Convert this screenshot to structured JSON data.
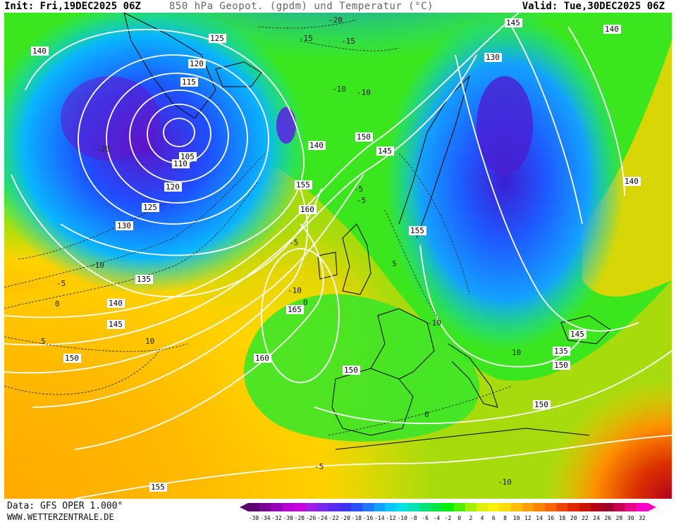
{
  "header": {
    "init": "Init: Fri,19DEC2025 06Z",
    "title": "850 hPa Geopot. (gpdm) und Temperatur (°C)",
    "valid": "Valid: Tue,30DEC2025 06Z"
  },
  "footer": {
    "data_source": "Data: GFS OPER 1.000°",
    "website": "WWW.WETTERZENTRALE.DE"
  },
  "legend": {
    "labels": [
      "-38",
      "-34",
      "-32",
      "-30",
      "-28",
      "-26",
      "-24",
      "-22",
      "-20",
      "-18",
      "-16",
      "-14",
      "-12",
      "-10",
      "-8",
      "-6",
      "-4",
      "-2",
      "0",
      "2",
      "4",
      "6",
      "8",
      "10",
      "12",
      "14",
      "16",
      "18",
      "20",
      "22",
      "24",
      "26",
      "28",
      "30",
      "32"
    ],
    "colors": [
      "#5a006e",
      "#7a0096",
      "#9400b4",
      "#b400d2",
      "#c800dc",
      "#9e1ee6",
      "#7828f0",
      "#5a2cf0",
      "#3c32f0",
      "#2850ff",
      "#1e78ff",
      "#14a0ff",
      "#0ac8ff",
      "#00e1e6",
      "#00e1b4",
      "#00e178",
      "#00e646",
      "#00f000",
      "#50f000",
      "#a0f000",
      "#dcf000",
      "#fff000",
      "#ffdc00",
      "#ffbe00",
      "#ffa000",
      "#ff8200",
      "#ff6400",
      "#f04600",
      "#dc2800",
      "#c81400",
      "#b40014",
      "#a00028",
      "#c80050",
      "#e6008c",
      "#ff00c8"
    ]
  },
  "geopotential_labels": [
    "140",
    "125",
    "120",
    "115",
    "105",
    "110",
    "120",
    "125",
    "130",
    "135",
    "140",
    "145",
    "150",
    "155",
    "160",
    "165",
    "160",
    "150",
    "155",
    "150",
    "140",
    "145",
    "150",
    "135",
    "130",
    "145",
    "140",
    "140",
    "145",
    "150",
    "155"
  ],
  "temperature_labels": [
    "-20",
    "-15",
    "-10",
    "-5",
    "-10",
    "-5",
    "0",
    "-5",
    "-10",
    "-20",
    "-15",
    "-10",
    "-5",
    "0",
    "0",
    "-5",
    "-10",
    "5",
    "10",
    "5",
    "10",
    "-10"
  ]
}
